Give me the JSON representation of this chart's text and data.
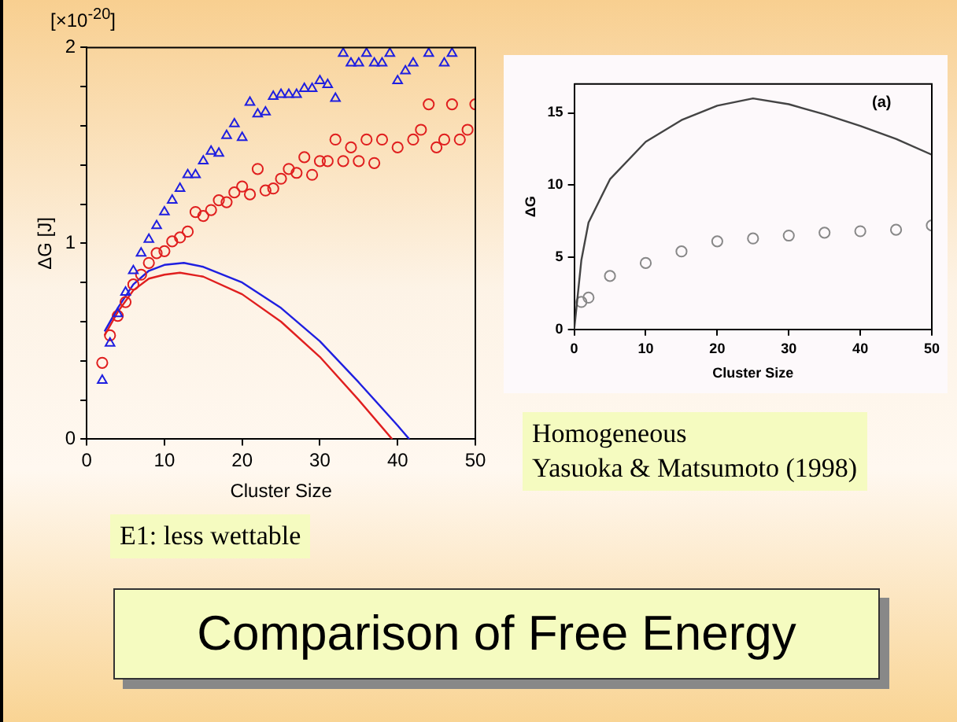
{
  "chart_data": [
    {
      "type": "scatter",
      "title": "Comparison of Free Energy",
      "xlabel": "Cluster Size",
      "ylabel": "ΔG [J]",
      "annotations": [
        "[×10$^{-20}$]",
        "E1: less wettable"
      ],
      "xlim": [
        0,
        50
      ],
      "ylim": [
        0,
        2
      ],
      "xticks": [
        0,
        10,
        20,
        30,
        40,
        50
      ],
      "yticks": [
        0,
        {
          "value": 0.2,
          "label": null
        },
        {
          "value": 0.4,
          "label": null
        },
        {
          "value": 0.6,
          "label": null
        },
        {
          "value": 0.8,
          "label": null
        },
        1,
        {
          "value": 1.2,
          "label": null
        },
        {
          "value": 1.4,
          "label": null
        },
        {
          "value": 1.6,
          "label": null
        },
        {
          "value": 1.8,
          "label": null
        },
        2
      ],
      "grid": false,
      "legend": false,
      "series": [
        {
          "type": "scatter",
          "marker": "triangle",
          "color": "#1f1fe0",
          "x": [
            2,
            3,
            4,
            5,
            6,
            7,
            8,
            9,
            10,
            11,
            12,
            13,
            14,
            15,
            16,
            17,
            18,
            19,
            20,
            21,
            22,
            23,
            24,
            25,
            26,
            27,
            28,
            29,
            30,
            31,
            32,
            33,
            34,
            35,
            36,
            37,
            38,
            39,
            40,
            41,
            42,
            44,
            46,
            47
          ],
          "values": [
            0.3,
            0.49,
            0.64,
            0.75,
            0.86,
            0.95,
            1.02,
            1.09,
            1.16,
            1.22,
            1.28,
            1.35,
            1.35,
            1.42,
            1.47,
            1.46,
            1.55,
            1.61,
            1.54,
            1.72,
            1.66,
            1.67,
            1.75,
            1.76,
            1.76,
            1.76,
            1.79,
            1.79,
            1.83,
            1.81,
            1.74,
            1.97,
            1.92,
            1.92,
            1.97,
            1.92,
            1.92,
            1.97,
            1.83,
            1.88,
            1.92,
            1.97,
            1.92,
            1.97
          ]
        },
        {
          "type": "scatter",
          "marker": "circle",
          "color": "#e01f1f",
          "x": [
            2,
            3,
            4,
            5,
            6,
            7,
            8,
            9,
            10,
            11,
            12,
            13,
            14,
            15,
            16,
            17,
            18,
            19,
            20,
            21,
            22,
            23,
            24,
            25,
            26,
            27,
            28,
            29,
            30,
            31,
            32,
            33,
            34,
            35,
            36,
            37,
            38,
            40,
            42,
            43,
            44,
            45,
            46,
            47,
            48,
            49,
            50
          ],
          "values": [
            0.39,
            0.53,
            0.63,
            0.7,
            0.79,
            0.84,
            0.9,
            0.95,
            0.96,
            1.01,
            1.03,
            1.06,
            1.16,
            1.14,
            1.17,
            1.22,
            1.21,
            1.26,
            1.29,
            1.25,
            1.38,
            1.27,
            1.28,
            1.33,
            1.38,
            1.36,
            1.44,
            1.35,
            1.42,
            1.42,
            1.53,
            1.42,
            1.49,
            1.42,
            1.53,
            1.41,
            1.53,
            1.49,
            1.53,
            1.58,
            1.71,
            1.49,
            1.53,
            1.71,
            1.53,
            1.58,
            1.71
          ]
        },
        {
          "type": "line",
          "marker": "none",
          "color": "#1f1fe0",
          "x": [
            2.3,
            4,
            6,
            8,
            10,
            12.5,
            15,
            20,
            25,
            30,
            35,
            40,
            41.5
          ],
          "values": [
            0.55,
            0.67,
            0.79,
            0.86,
            0.89,
            0.9,
            0.88,
            0.8,
            0.67,
            0.5,
            0.29,
            0.07,
            0
          ]
        },
        {
          "type": "line",
          "marker": "none",
          "color": "#e01f1f",
          "x": [
            2.3,
            4,
            6,
            8,
            10,
            12,
            15,
            20,
            25,
            30,
            35,
            39.3
          ],
          "values": [
            0.53,
            0.65,
            0.76,
            0.82,
            0.84,
            0.85,
            0.83,
            0.74,
            0.6,
            0.42,
            0.2,
            0
          ]
        }
      ]
    },
    {
      "type": "scatter",
      "xlabel": "Cluster Size",
      "ylabel": "ΔG",
      "annotations": [
        "(a)",
        "Homogeneous\nYasuoka & Matsumoto (1998)"
      ],
      "xlim": [
        0,
        50
      ],
      "ylim": [
        0,
        17
      ],
      "xticks": [
        0,
        10,
        20,
        30,
        40,
        50
      ],
      "yticks": [
        0,
        5,
        10,
        15
      ],
      "grid": false,
      "legend": false,
      "series": [
        {
          "type": "line",
          "marker": "none",
          "color": "#444444",
          "x": [
            0,
            1,
            2,
            5,
            10,
            15,
            20,
            25,
            30,
            35,
            40,
            45,
            50
          ],
          "values": [
            0,
            4.8,
            7.4,
            10.4,
            13.0,
            14.5,
            15.5,
            16.0,
            15.6,
            14.9,
            14.1,
            13.2,
            12.1
          ]
        },
        {
          "type": "scatter",
          "marker": "circle",
          "color": "#888888",
          "x": [
            1,
            2,
            5,
            10,
            15,
            20,
            25,
            30,
            35,
            40,
            45,
            50
          ],
          "values": [
            1.9,
            2.2,
            3.7,
            4.6,
            5.4,
            6.1,
            6.3,
            6.5,
            6.7,
            6.8,
            6.9,
            7.2
          ]
        }
      ]
    }
  ]
}
